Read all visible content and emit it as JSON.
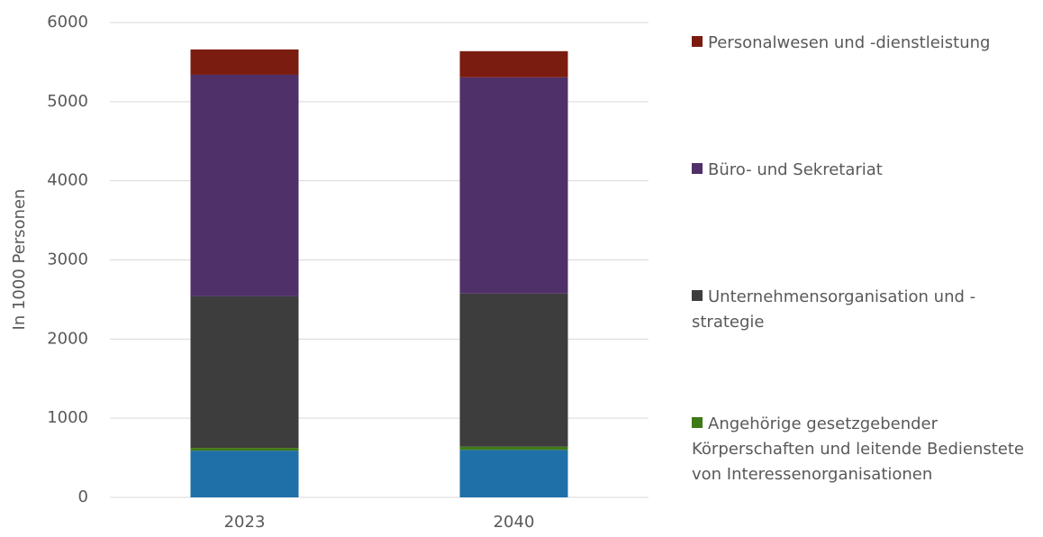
{
  "chart_data": {
    "type": "stacked_bar",
    "ylabel": "In 1000 Personen",
    "categories": [
      "2023",
      "2040"
    ],
    "series": [
      {
        "color": "#1f6fa8",
        "values": [
          590,
          600
        ]
      },
      {
        "name": "Angehörige gesetzgebender Körperschaften und leitende Bedienstete von Interessenorganisationen",
        "color": "#3e7a16",
        "values": [
          35,
          40
        ]
      },
      {
        "name": "Unternehmensorganisation und -strategie",
        "color": "#3d3d3d",
        "values": [
          1915,
          1935
        ]
      },
      {
        "name": "Büro- und Sekretariat",
        "color": "#4f3068",
        "values": [
          2800,
          2733
        ]
      },
      {
        "name": "Personalwesen und -dienstleistung",
        "color": "#7b1c10",
        "values": [
          320,
          330
        ]
      }
    ],
    "ylim": [
      0,
      6000
    ],
    "yticks": [
      0,
      1000,
      2000,
      3000,
      4000,
      5000,
      6000
    ],
    "grid": true,
    "legend": "right"
  }
}
